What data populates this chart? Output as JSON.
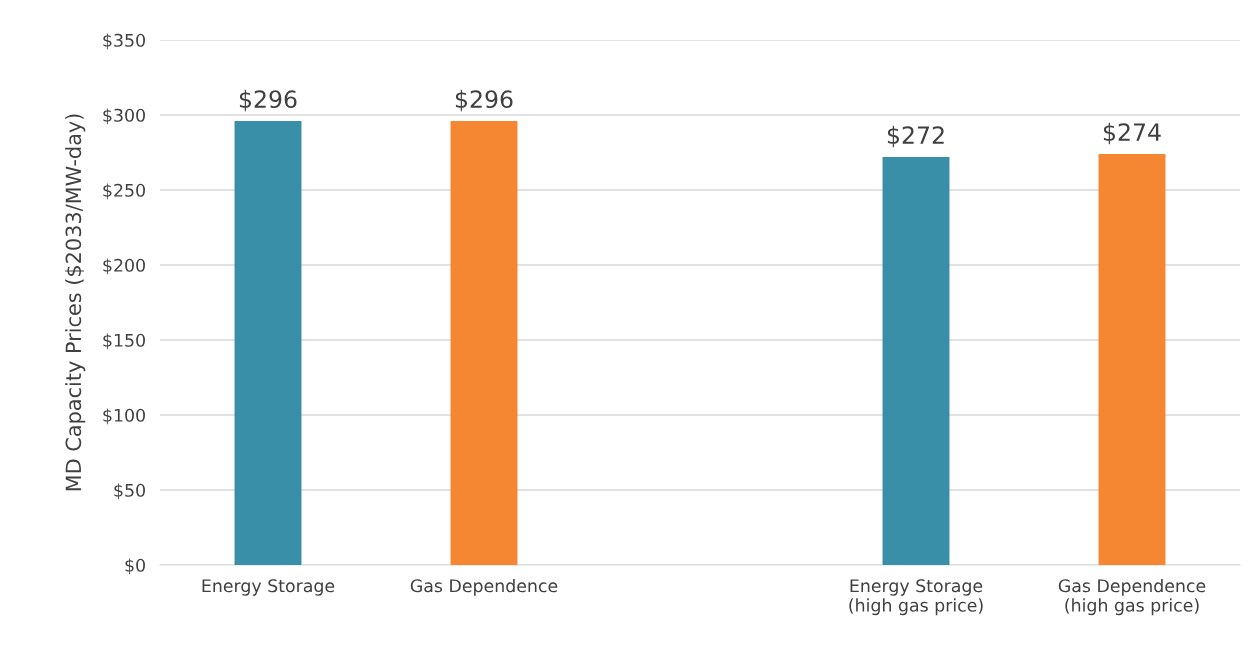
{
  "chart_data": {
    "type": "bar",
    "ylabel": "MD Capacity Prices ($2033/MW-day)",
    "categories": [
      "Energy Storage",
      "Gas Dependence",
      null,
      "Energy Storage\n(high gas price)",
      "Gas Dependence\n(high gas price)"
    ],
    "values": [
      296,
      296,
      null,
      272,
      274
    ],
    "colors": [
      "#3a8fa8",
      "#f58733",
      "#3a8fa8",
      "#3a8fa8",
      "#f58733"
    ],
    "value_labels": [
      "$296",
      "$296",
      null,
      "$272",
      "$274"
    ],
    "ylim": [
      0,
      350
    ],
    "yticks": [
      {
        "value": 0,
        "label": "$0"
      },
      {
        "value": 50,
        "label": "$50"
      },
      {
        "value": 100,
        "label": "$100"
      },
      {
        "value": 150,
        "label": "$150"
      },
      {
        "value": 200,
        "label": "$200"
      },
      {
        "value": 250,
        "label": "$250"
      },
      {
        "value": 300,
        "label": "$300"
      },
      {
        "value": 350,
        "label": "$350"
      }
    ],
    "grid": "y"
  }
}
